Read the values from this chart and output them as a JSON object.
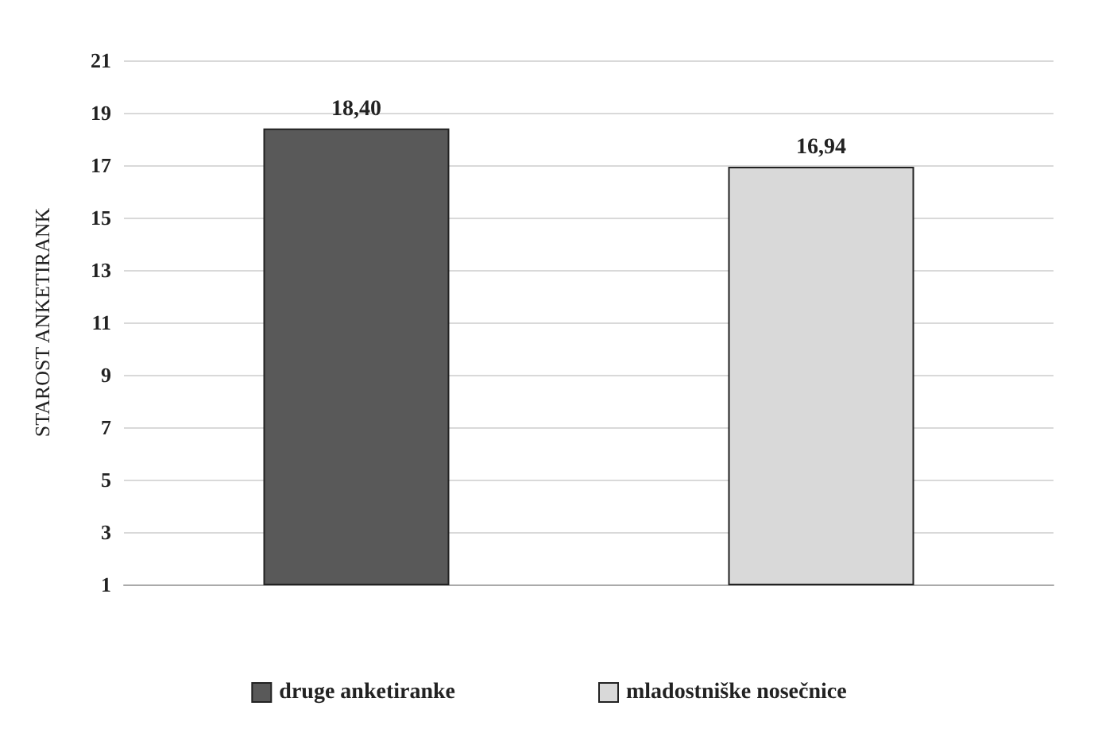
{
  "chart_data": {
    "type": "bar",
    "ylabel": "STAROST ANKETIRANK",
    "categories": [
      null,
      null
    ],
    "series": [
      {
        "name": "druge anketiranke",
        "color": "#595959",
        "values": [
          18.4,
          null
        ],
        "value_labels": [
          "18,40",
          null
        ]
      },
      {
        "name": "mladostniške nosečnice",
        "color": "#d9d9d9",
        "values": [
          null,
          16.94
        ],
        "value_labels": [
          null,
          "16,94"
        ]
      }
    ],
    "ylim": [
      1,
      21
    ],
    "yticks": [
      1,
      3,
      5,
      7,
      9,
      11,
      13,
      15,
      17,
      19,
      21
    ],
    "grid": "y",
    "legend": "bottom"
  }
}
